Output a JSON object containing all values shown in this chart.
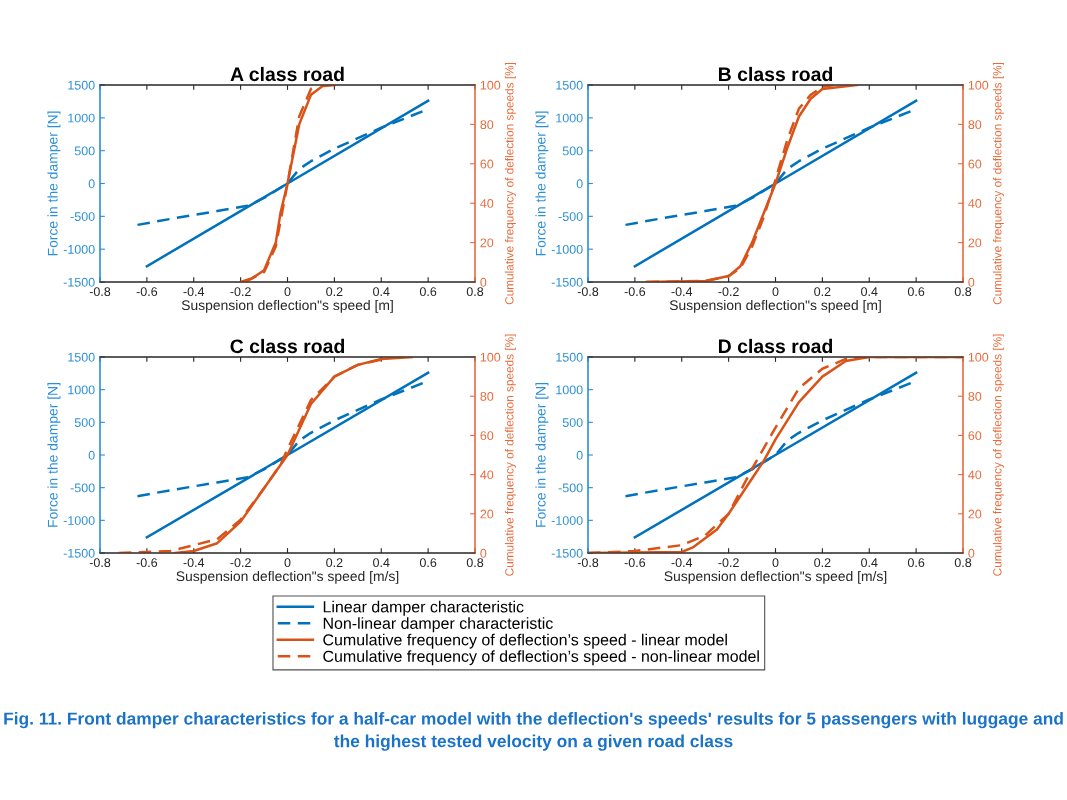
{
  "chart_data": [
    {
      "type": "line",
      "title": "A class road",
      "xlabel": "Suspension deflection\"s speed [m]",
      "ylabel": "Force in the damper [N]",
      "y2label": "Cumulative frequency of deflection speeds [%]",
      "legend": "bottom",
      "xlim": [
        -0.8,
        0.8
      ],
      "xticks": [
        -0.8,
        -0.6,
        -0.4,
        -0.2,
        0,
        0.2,
        0.4,
        0.6,
        0.8
      ],
      "ylim": [
        -1500,
        1500
      ],
      "yticks": [
        -1500,
        -1000,
        -500,
        0,
        500,
        1000,
        1500
      ],
      "y2lim": [
        0,
        100
      ],
      "y2ticks": [
        0,
        20,
        40,
        60,
        80,
        100
      ],
      "grid": false,
      "series": [
        {
          "name": "Linear damper characteristic",
          "color": "#0072bd",
          "line_style": "solid",
          "x": [
            -0.6,
            0,
            0.6
          ],
          "values": [
            -1260,
            0,
            1260
          ]
        },
        {
          "name": "Non-linear damper characteristic",
          "color": "#0072bd",
          "line_style": "dashed",
          "x": [
            -0.64,
            -0.5,
            -0.4,
            -0.3,
            -0.17,
            -0.1,
            -0.05,
            0,
            0.05,
            0.1,
            0.2,
            0.3,
            0.4,
            0.5,
            0.59
          ],
          "values": [
            -630,
            -540,
            -480,
            -420,
            -340,
            -220,
            -110,
            0,
            220,
            340,
            530,
            690,
            850,
            990,
            1120
          ]
        },
        {
          "name": "Cumulative frequency of deflection’s speed - linear model",
          "color": "#d95319",
          "line_style": "solid",
          "axis": "y2",
          "x": [
            -0.2,
            -0.15,
            -0.1,
            -0.05,
            -0.03,
            0,
            0.03,
            0.05,
            0.1,
            0.15,
            0.2
          ],
          "values": [
            0,
            2,
            6,
            20,
            35,
            50,
            68,
            80,
            95,
            99.5,
            100
          ]
        },
        {
          "name": "Cumulative frequency of deflection’s speed - non-linear model",
          "color": "#d95319",
          "line_style": "dashed",
          "axis": "y2",
          "x": [
            -0.18,
            -0.1,
            -0.05,
            0,
            0.05,
            0.1,
            0.13
          ],
          "values": [
            0,
            5,
            18,
            50,
            84,
            98,
            100
          ]
        }
      ]
    },
    {
      "type": "line",
      "title": "B class road",
      "xlabel": "Suspension deflection\"s speed [m]",
      "ylabel": "Force in the damper [N]",
      "y2label": "Cumulative frequency of deflection speeds [%]",
      "xlim": [
        -0.8,
        0.8
      ],
      "xticks": [
        -0.8,
        -0.6,
        -0.4,
        -0.2,
        0,
        0.2,
        0.4,
        0.6,
        0.8
      ],
      "ylim": [
        -1500,
        1500
      ],
      "yticks": [
        -1500,
        -1000,
        -500,
        0,
        500,
        1000,
        1500
      ],
      "y2lim": [
        0,
        100
      ],
      "y2ticks": [
        0,
        20,
        40,
        60,
        80,
        100
      ],
      "grid": false,
      "series": [
        {
          "color": "#0072bd",
          "line_style": "solid",
          "x": [
            -0.6,
            0,
            0.6
          ],
          "values": [
            -1260,
            0,
            1260
          ]
        },
        {
          "color": "#0072bd",
          "line_style": "dashed",
          "x": [
            -0.64,
            -0.5,
            -0.4,
            -0.3,
            -0.17,
            -0.1,
            -0.05,
            0,
            0.05,
            0.1,
            0.2,
            0.3,
            0.4,
            0.5,
            0.59
          ],
          "values": [
            -630,
            -540,
            -480,
            -420,
            -340,
            -220,
            -110,
            0,
            220,
            340,
            530,
            690,
            850,
            990,
            1120
          ]
        },
        {
          "color": "#d95319",
          "line_style": "solid",
          "axis": "y2",
          "x": [
            -0.55,
            -0.3,
            -0.2,
            -0.15,
            -0.1,
            -0.05,
            0,
            0.05,
            0.1,
            0.15,
            0.2,
            0.35
          ],
          "values": [
            0,
            0.5,
            3,
            8,
            20,
            35,
            50,
            68,
            84,
            93,
            98,
            100
          ]
        },
        {
          "color": "#d95319",
          "line_style": "dashed",
          "axis": "y2",
          "x": [
            -0.55,
            -0.3,
            -0.2,
            -0.15,
            -0.1,
            -0.05,
            0,
            0.05,
            0.1,
            0.15,
            0.2,
            0.25
          ],
          "values": [
            0,
            0.5,
            3,
            7,
            18,
            33,
            52,
            72,
            88,
            95,
            99,
            100
          ]
        }
      ]
    },
    {
      "type": "line",
      "title": "C class road",
      "xlabel": "Suspension deflection\"s speed [m/s]",
      "ylabel": "Force in the damper [N]",
      "y2label": "Cumulative frequency of deflection speeds [%]",
      "xlim": [
        -0.8,
        0.8
      ],
      "xticks": [
        -0.8,
        -0.6,
        -0.4,
        -0.2,
        0,
        0.2,
        0.4,
        0.6,
        0.8
      ],
      "ylim": [
        -1500,
        1500
      ],
      "yticks": [
        -1500,
        -1000,
        -500,
        0,
        500,
        1000,
        1500
      ],
      "y2lim": [
        0,
        100
      ],
      "y2ticks": [
        0,
        20,
        40,
        60,
        80,
        100
      ],
      "grid": false,
      "series": [
        {
          "color": "#0072bd",
          "line_style": "solid",
          "x": [
            -0.6,
            0,
            0.6
          ],
          "values": [
            -1260,
            0,
            1260
          ]
        },
        {
          "color": "#0072bd",
          "line_style": "dashed",
          "x": [
            -0.64,
            -0.5,
            -0.4,
            -0.3,
            -0.17,
            -0.1,
            -0.05,
            0,
            0.05,
            0.1,
            0.2,
            0.3,
            0.4,
            0.5,
            0.59
          ],
          "values": [
            -630,
            -540,
            -480,
            -420,
            -340,
            -220,
            -110,
            0,
            220,
            340,
            530,
            690,
            850,
            990,
            1120
          ]
        },
        {
          "color": "#d95319",
          "line_style": "solid",
          "axis": "y2",
          "x": [
            -0.48,
            -0.4,
            -0.3,
            -0.2,
            -0.1,
            0,
            0.1,
            0.2,
            0.3,
            0.4,
            0.53
          ],
          "values": [
            0,
            1,
            5,
            16,
            33,
            50,
            76,
            90,
            96,
            99,
            100
          ]
        },
        {
          "color": "#d95319",
          "line_style": "dashed",
          "axis": "y2",
          "x": [
            -0.72,
            -0.5,
            -0.3,
            -0.2,
            -0.1,
            -0.03,
            0,
            0.1,
            0.2,
            0.3,
            0.45
          ],
          "values": [
            0,
            1,
            7,
            17,
            33,
            45,
            53,
            78,
            90,
            96,
            100
          ]
        }
      ]
    },
    {
      "type": "line",
      "title": "D class road",
      "xlabel": "Suspension deflection\"s speed [m/s]",
      "ylabel": "Force in the damper [N]",
      "y2label": "Cumulative frequency of deflection speeds [%]",
      "xlim": [
        -0.8,
        0.8
      ],
      "xticks": [
        -0.8,
        -0.6,
        -0.4,
        -0.2,
        0,
        0.2,
        0.4,
        0.6,
        0.8
      ],
      "ylim": [
        -1500,
        1500
      ],
      "yticks": [
        -1500,
        -1000,
        -500,
        0,
        500,
        1000,
        1500
      ],
      "y2lim": [
        0,
        100
      ],
      "y2ticks": [
        0,
        20,
        40,
        60,
        80,
        100
      ],
      "grid": false,
      "annotations": [
        "Fig. 11. Front damper characteristics for a half-car model with the deflection's speeds' results for 5 passengers with luggage and the highest tested velocity on a given road class"
      ],
      "series": [
        {
          "color": "#0072bd",
          "line_style": "solid",
          "x": [
            -0.6,
            0,
            0.6
          ],
          "values": [
            -1260,
            0,
            1260
          ]
        },
        {
          "color": "#0072bd",
          "line_style": "dashed",
          "x": [
            -0.64,
            -0.5,
            -0.4,
            -0.3,
            -0.17,
            -0.1,
            -0.05,
            0,
            0.05,
            0.1,
            0.2,
            0.3,
            0.4,
            0.5,
            0.59
          ],
          "values": [
            -630,
            -540,
            -480,
            -420,
            -340,
            -220,
            -110,
            0,
            220,
            340,
            530,
            690,
            850,
            990,
            1120
          ]
        },
        {
          "color": "#d95319",
          "line_style": "solid",
          "axis": "y2",
          "x": [
            -0.8,
            -0.4,
            -0.35,
            -0.25,
            -0.2,
            -0.1,
            -0.05,
            0,
            0.1,
            0.2,
            0.3,
            0.4,
            0.8
          ],
          "values": [
            0,
            0.5,
            3,
            12,
            20,
            38,
            47,
            58,
            77,
            90,
            98,
            100,
            100
          ]
        },
        {
          "color": "#d95319",
          "line_style": "dashed",
          "axis": "y2",
          "x": [
            -0.8,
            -0.6,
            -0.4,
            -0.3,
            -0.2,
            -0.1,
            0,
            0.1,
            0.2,
            0.3,
            0.4,
            0.8
          ],
          "values": [
            0,
            1,
            4,
            9,
            20,
            43,
            64,
            84,
            94,
            99,
            100,
            100
          ]
        }
      ]
    }
  ]
}
